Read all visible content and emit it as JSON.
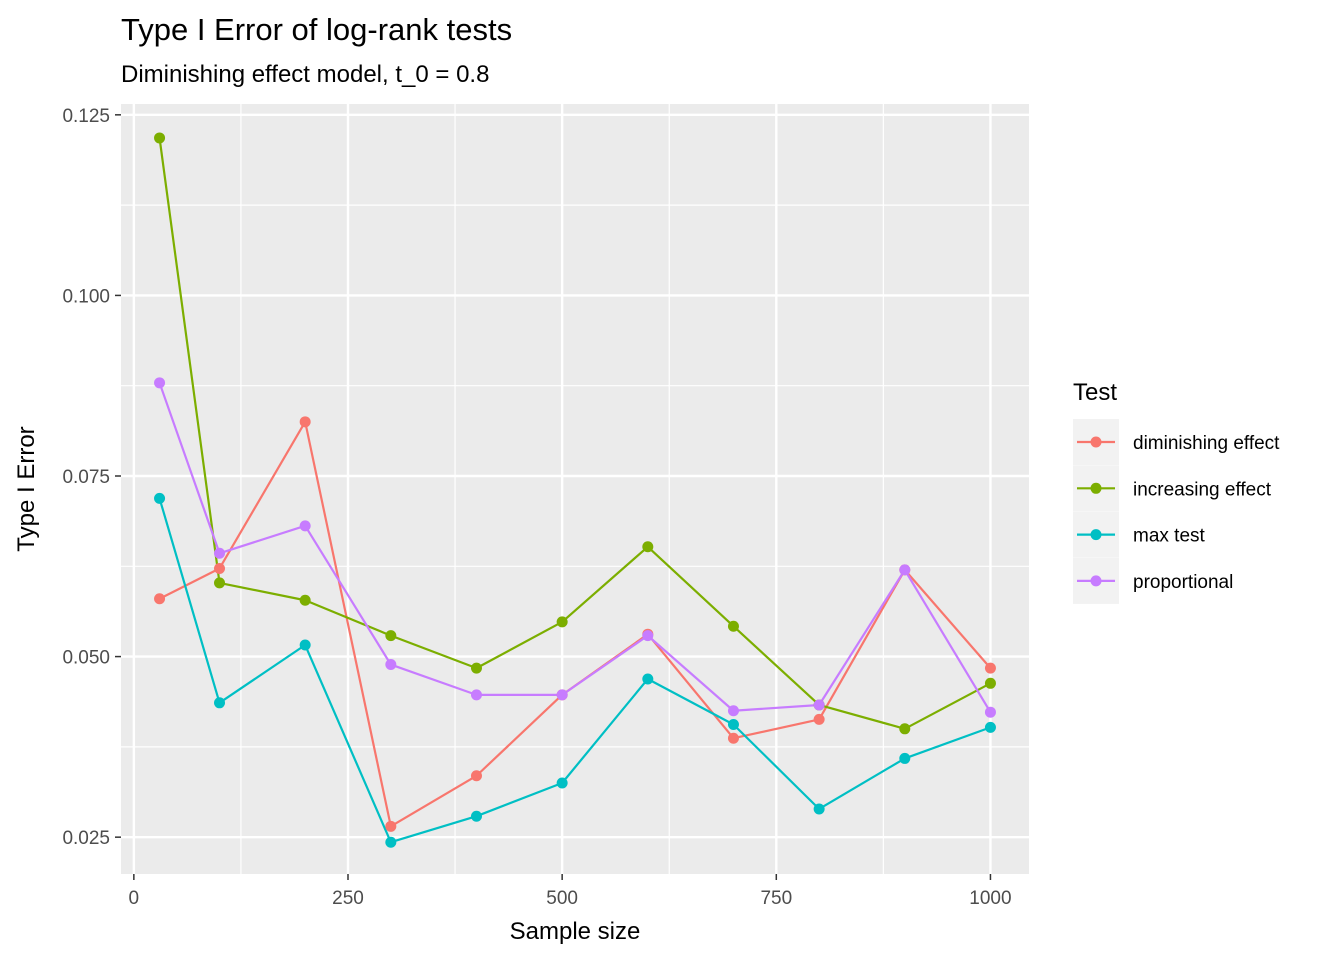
{
  "chart_data": {
    "type": "line",
    "title": "Type I Error of log-rank tests",
    "subtitle": "Diminishing effect model, t_0 = 0.8",
    "xlabel": "Sample size",
    "ylabel": "Type I Error",
    "xlim": [
      -15,
      1045
    ],
    "ylim": [
      0.0199,
      0.1265
    ],
    "x_ticks": [
      0,
      250,
      500,
      750,
      1000
    ],
    "x_tick_labels": [
      "0",
      "250",
      "500",
      "750",
      "1000"
    ],
    "y_ticks": [
      0.025,
      0.05,
      0.075,
      0.1,
      0.125
    ],
    "y_tick_labels": [
      "0.025",
      "0.050",
      "0.075",
      "0.100",
      "0.125"
    ],
    "grid": true,
    "legend": {
      "title": "Test",
      "position": "right"
    },
    "x": [
      30,
      100,
      200,
      300,
      400,
      500,
      600,
      700,
      800,
      900,
      1000
    ],
    "series": [
      {
        "name": "diminishing effect",
        "color": "#F8766D",
        "values": [
          0.058,
          0.0622,
          0.0825,
          0.0265,
          0.0335,
          0.0447,
          0.0531,
          0.0387,
          0.0413,
          0.062,
          0.0484
        ]
      },
      {
        "name": "increasing effect",
        "color": "#7CAE00",
        "values": [
          0.1218,
          0.0602,
          0.0578,
          0.0529,
          0.0484,
          0.0548,
          0.0652,
          0.0542,
          0.0433,
          0.04,
          0.0463
        ]
      },
      {
        "name": "max test",
        "color": "#00BFC4",
        "values": [
          0.0719,
          0.0436,
          0.0516,
          0.0243,
          0.0279,
          0.0325,
          0.0469,
          0.0406,
          0.0289,
          0.0359,
          0.0402
        ]
      },
      {
        "name": "proportional",
        "color": "#C77CFF",
        "values": [
          0.0879,
          0.0643,
          0.0681,
          0.0489,
          0.0447,
          0.0447,
          0.0529,
          0.0425,
          0.0433,
          0.062,
          0.0423
        ]
      }
    ]
  }
}
